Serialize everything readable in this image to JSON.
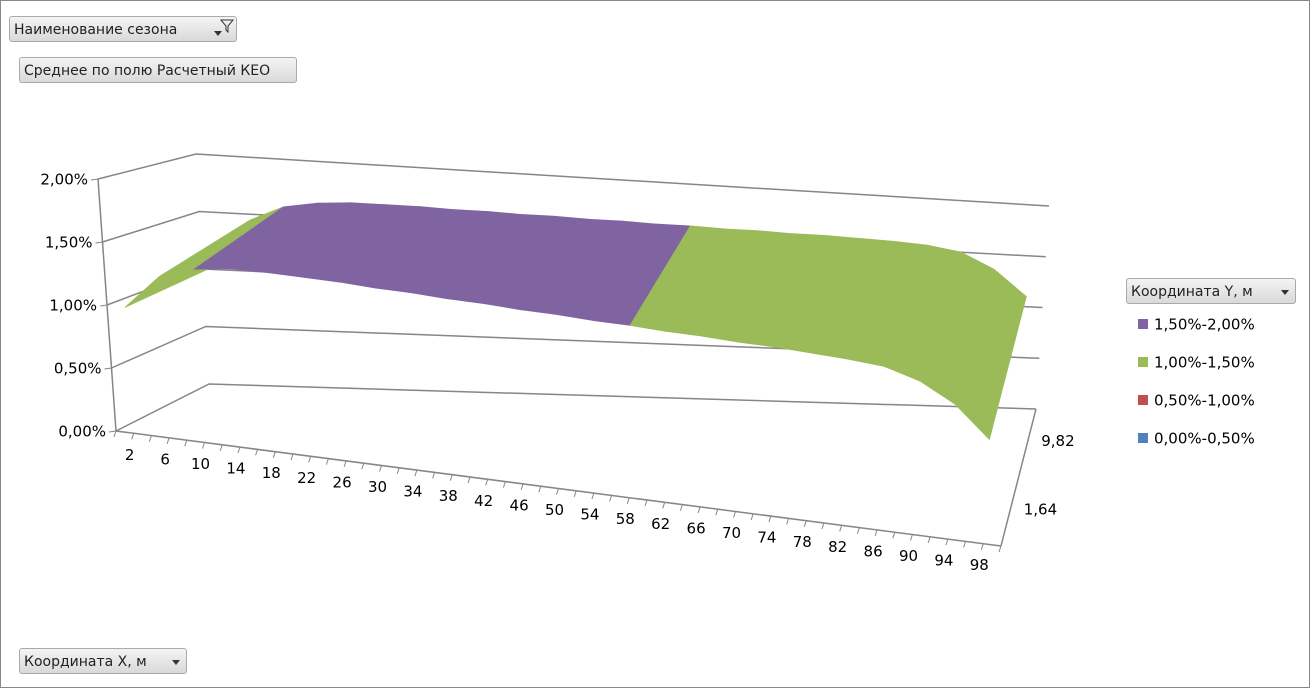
{
  "filter_button": "Наименование сезона",
  "value_button": "Среднее по полю Расчетный КЕО",
  "x_button": "Координата X, м",
  "chart_data": {
    "type": "surface",
    "legend_title": "Координата Y, м",
    "categories": [
      "2",
      "6",
      "10",
      "14",
      "18",
      "22",
      "26",
      "30",
      "34",
      "38",
      "42",
      "46",
      "50",
      "54",
      "58",
      "62",
      "66",
      "70",
      "74",
      "78",
      "82",
      "86",
      "90",
      "94",
      "98"
    ],
    "depth_categories": [
      "1,64",
      "9,82"
    ],
    "rows": [
      {
        "values": [
          1.0,
          1.28,
          1.38,
          1.42,
          1.43,
          1.43,
          1.43,
          1.42,
          1.42,
          1.41,
          1.41,
          1.4,
          1.4,
          1.39,
          1.39,
          1.38,
          1.38,
          1.37,
          1.37,
          1.36,
          1.35,
          1.33,
          1.25,
          1.1,
          0.85
        ]
      },
      {
        "values": [
          1.05,
          1.45,
          1.58,
          1.63,
          1.65,
          1.65,
          1.65,
          1.64,
          1.64,
          1.63,
          1.63,
          1.62,
          1.62,
          1.61,
          1.61,
          1.6,
          1.6,
          1.59,
          1.59,
          1.58,
          1.57,
          1.55,
          1.5,
          1.35,
          1.1
        ]
      }
    ],
    "bands": [
      {
        "name": "1,50%-2,00%",
        "min": 1.5,
        "max": 2.0,
        "color": "#8064a2"
      },
      {
        "name": "1,00%-1,50%",
        "min": 1.0,
        "max": 1.5,
        "color": "#9bbb59"
      },
      {
        "name": "0,50%-1,00%",
        "min": 0.5,
        "max": 1.0,
        "color": "#c0504d"
      },
      {
        "name": "0,00%-0,50%",
        "min": 0.0,
        "max": 0.5,
        "color": "#4f81bd"
      }
    ],
    "zlim": [
      0,
      2
    ],
    "zticks": [
      {
        "value": 0,
        "label": "0,00%"
      },
      {
        "value": 0.5,
        "label": "0,50%"
      },
      {
        "value": 1.0,
        "label": "1,00%"
      },
      {
        "value": 1.5,
        "label": "1,50%"
      },
      {
        "value": 2.0,
        "label": "2,00%"
      }
    ]
  }
}
